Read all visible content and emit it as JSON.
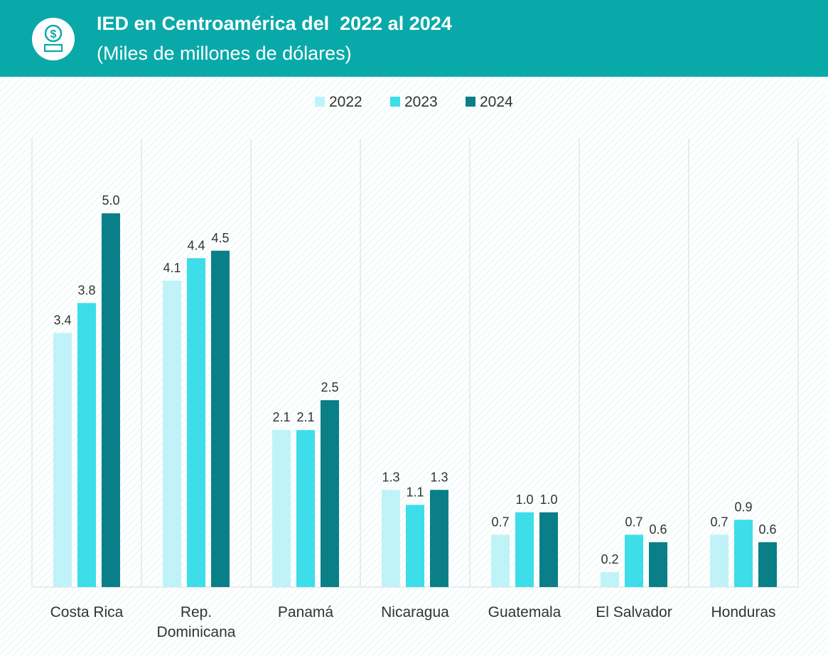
{
  "chart_data": {
    "type": "bar",
    "title": "IED en Centroamérica del  2022 al 2024",
    "subtitle": "(Miles de millones de dólares)",
    "categories": [
      "Costa Rica",
      "Rep. Dominicana",
      "Panamá",
      "Nicaragua",
      "Guatemala",
      "El Salvador",
      "Honduras"
    ],
    "series": [
      {
        "name": "2022",
        "color": "#bff3f7",
        "values": [
          3.4,
          4.1,
          2.1,
          1.3,
          0.7,
          0.2,
          0.7
        ],
        "value_labels": [
          "3.4",
          "4.1",
          "2.1",
          "1.3",
          "0.7",
          "0.2",
          "0.7"
        ]
      },
      {
        "name": "2023",
        "color": "#3ddde9",
        "values": [
          3.8,
          4.4,
          2.1,
          1.1,
          1.0,
          0.7,
          0.9
        ],
        "value_labels": [
          "3.8",
          "4.4",
          "2.1",
          "1.1",
          "1.0",
          "0.7",
          "0.9"
        ]
      },
      {
        "name": "2024",
        "color": "#0a7f87",
        "values": [
          5.0,
          4.5,
          2.5,
          1.3,
          1.0,
          0.6,
          0.6
        ],
        "value_labels": [
          "5.0",
          "4.5",
          "2.5",
          "1.3",
          "1.0",
          "0.6",
          "0.6"
        ]
      }
    ],
    "ylim": [
      0,
      6
    ],
    "legend": "top"
  }
}
